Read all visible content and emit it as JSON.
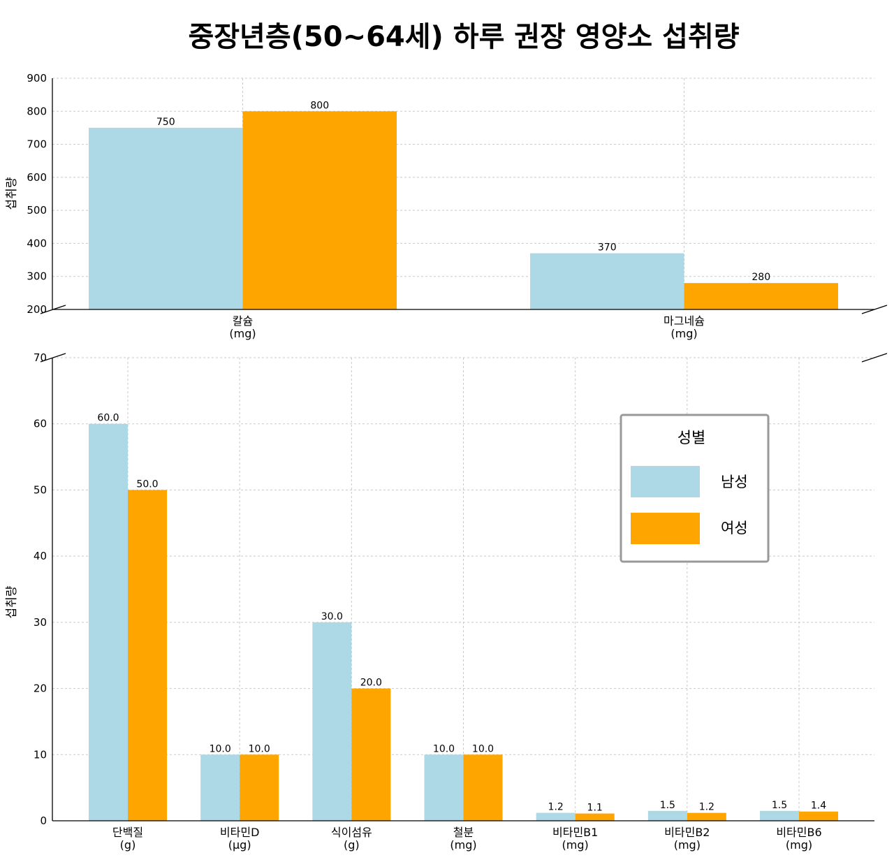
{
  "title": "중장년층(50~64세) 하루 권장 영양소 섭취량",
  "colors": {
    "male": "#add8e6",
    "female": "#ffa500"
  },
  "legend": {
    "title": "성별",
    "male": "남성",
    "female": "여성",
    "placement": "upper-right"
  },
  "chart_data": [
    {
      "type": "bar",
      "ylabel": "섭취량",
      "ylim": [
        200,
        900
      ],
      "yticks": [
        200,
        300,
        400,
        500,
        600,
        700,
        800,
        900
      ],
      "grid": true,
      "categories": [
        {
          "name": "칼슘",
          "unit": "(mg)"
        },
        {
          "name": "마그네슘",
          "unit": "(mg)"
        }
      ],
      "series": [
        {
          "name": "남성",
          "values": [
            750,
            370
          ],
          "labels": [
            "750",
            "370"
          ]
        },
        {
          "name": "여성",
          "values": [
            800,
            280
          ],
          "labels": [
            "800",
            "280"
          ]
        }
      ]
    },
    {
      "type": "bar",
      "ylabel": "섭취량",
      "ylim": [
        0,
        70
      ],
      "yticks": [
        0,
        10,
        20,
        30,
        40,
        50,
        60,
        70
      ],
      "grid": true,
      "categories": [
        {
          "name": "단백질",
          "unit": "(g)"
        },
        {
          "name": "비타민D",
          "unit": "(μg)"
        },
        {
          "name": "식이섬유",
          "unit": "(g)"
        },
        {
          "name": "철분",
          "unit": "(mg)"
        },
        {
          "name": "비타민B1",
          "unit": "(mg)"
        },
        {
          "name": "비타민B2",
          "unit": "(mg)"
        },
        {
          "name": "비타민B6",
          "unit": "(mg)"
        }
      ],
      "series": [
        {
          "name": "남성",
          "values": [
            60,
            10,
            30,
            10,
            1.2,
            1.5,
            1.5
          ],
          "labels": [
            "60.0",
            "10.0",
            "30.0",
            "10.0",
            "1.2",
            "1.5",
            "1.5"
          ]
        },
        {
          "name": "여성",
          "values": [
            50,
            10,
            20,
            10,
            1.1,
            1.2,
            1.4
          ],
          "labels": [
            "50.0",
            "10.0",
            "20.0",
            "10.0",
            "1.1",
            "1.2",
            "1.4"
          ]
        }
      ]
    }
  ]
}
